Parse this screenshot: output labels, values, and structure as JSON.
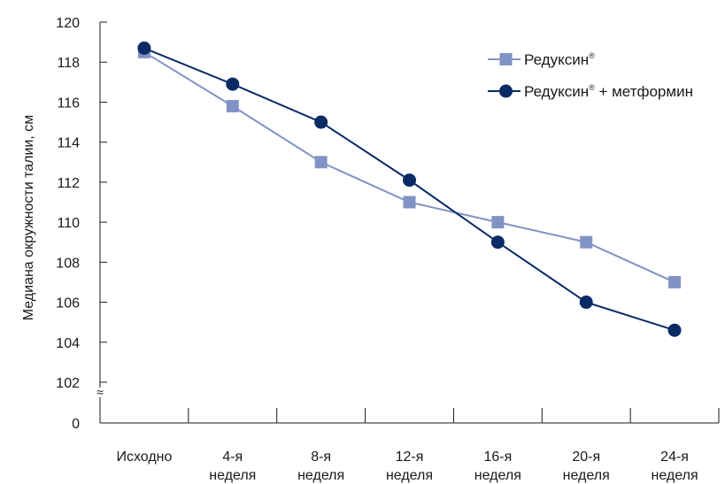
{
  "chart_data": {
    "type": "line",
    "categories": [
      [
        "Исходно"
      ],
      [
        "4-я",
        "неделя"
      ],
      [
        "8-я",
        "неделя"
      ],
      [
        "12-я",
        "неделя"
      ],
      [
        "16-я",
        "неделя"
      ],
      [
        "20-я",
        "неделя"
      ],
      [
        "24-я",
        "неделя"
      ]
    ],
    "ylabel": "Медиана окружности талии, см",
    "y_ticks": [
      "0",
      "102",
      "104",
      "106",
      "108",
      "110",
      "112",
      "114",
      "116",
      "118",
      "120"
    ],
    "ylim": [
      102,
      120
    ],
    "axis_break": true,
    "axis_break_symbol": "≈",
    "legend_position": "top-right",
    "series": [
      {
        "name": "Редуксин®",
        "legend_text": "Редуксин",
        "legend_sup": "®",
        "legend_suffix": "",
        "marker": "square",
        "color": "#8193c4",
        "values": [
          118.5,
          115.8,
          113.0,
          111.0,
          110.0,
          109.0,
          107.0
        ]
      },
      {
        "name": "Редуксин® + метформин",
        "legend_text": "Редуксин",
        "legend_sup": "®",
        "legend_suffix": " + метформин",
        "marker": "circle",
        "color": "#0a2a66",
        "values": [
          118.7,
          116.9,
          115.0,
          112.1,
          109.0,
          106.0,
          104.6
        ]
      }
    ]
  }
}
